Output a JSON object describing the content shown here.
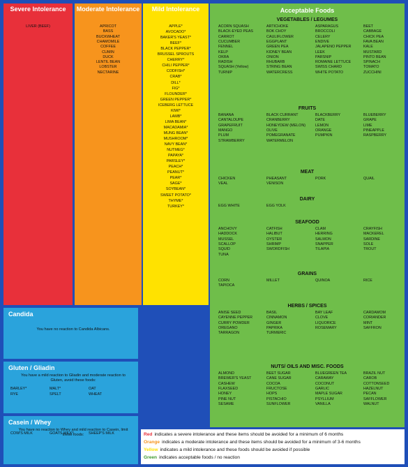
{
  "columns": [
    {
      "title": "Severe Intolerance",
      "items": [
        "LIVER (BEEF)"
      ]
    },
    {
      "title": "Moderate Intolerance",
      "items": [
        "APRICOT",
        "BASS",
        "BUCKWHEAT",
        "CHAMOMILE",
        "COFFEE",
        "CUMIN",
        "DUCK",
        "LENTIL BEAN",
        "LOBSTER",
        "NECTARINE"
      ]
    },
    {
      "title": "Mild Intolerance",
      "items": [
        "APPLE*",
        "AVOCADO*",
        "BAKER'S YEAST*",
        "BEEF*",
        "BLACK PEPPER*",
        "BRUSSEL SPROUTS",
        "CHERRY*",
        "CHILI PEPPER*",
        "CODFISH*",
        "CRAB*",
        "DILL*",
        "FIG*",
        "FLOUNDER*",
        "GREEN PEPPER*",
        "ICEBERG LETTUCE",
        "KIWI*",
        "LAMB*",
        "LIMA BEAN*",
        "MACADAMIA*",
        "MUNG BEAN*",
        "MUSHROOM*",
        "NAVY BEAN*",
        "NUTMEG*",
        "PAPAYA*",
        "PARSLEY*",
        "PEACH*",
        "PEANUT*",
        "PEAR*",
        "SAGE*",
        "SOYBEAN*",
        "SWEET POTATO*",
        "THYME*",
        "TURKEY*"
      ]
    }
  ],
  "acceptable": {
    "title": "Acceptable Foods",
    "sections": [
      {
        "title": "VEGETABLES / LEGUMES",
        "rows": [
          [
            "ACORN SQUASH",
            "ARTICHOKE",
            "ASPARAGUS",
            "BEET"
          ],
          [
            "BLACK-EYED PEAS",
            "BOK CHOY",
            "BROCCOLI",
            "CABBAGE"
          ],
          [
            "CARROT",
            "CAULIFLOWER",
            "CELERY",
            "CHICK PEA"
          ],
          [
            "CUCUMBER",
            "EGGPLANT",
            "ENDIVE",
            "FAVA BEAN"
          ],
          [
            "FENNEL",
            "GREEN PEA",
            "JALAPENO PEPPER",
            "KALE"
          ],
          [
            "KELP",
            "KIDNEY BEAN",
            "LEEK",
            "MUSTARD"
          ],
          [
            "OKRA",
            "ONION",
            "PARSNIP",
            "PINTO BEAN"
          ],
          [
            "RADISH",
            "RHUBARB",
            "ROMAINE LETTUCE",
            "SPINACH"
          ],
          [
            "SQUASH (Yellow)",
            "STRING BEAN",
            "SWISS CHARD",
            "TOMATO"
          ],
          [
            "TURNIP",
            "WATERCRESS",
            "WHITE POTATO",
            "ZUCCHINI"
          ]
        ]
      },
      {
        "title": "FRUITS",
        "rows": [
          [
            "BANANA",
            "BLACK CURRANT",
            "BLACKBERRY",
            "BLUEBERRY"
          ],
          [
            "CANTALOUPE",
            "CRANBERRY",
            "DATE",
            "GRAPE"
          ],
          [
            "GRAPEFRUIT",
            "HONEYDEW (MELON)",
            "LEMON",
            "LIME"
          ],
          [
            "MANGO",
            "OLIVE",
            "ORANGE",
            "PINEAPPLE"
          ],
          [
            "PLUM",
            "POMEGRANATE",
            "PUMPKIN",
            "RASPBERRY"
          ],
          [
            "STRAWBERRY",
            "WATERMELON"
          ]
        ]
      },
      {
        "title": "MEAT",
        "rows": [
          [
            "CHICKEN",
            "PHEASANT",
            "PORK",
            "QUAIL"
          ],
          [
            "VEAL",
            "VENISON"
          ]
        ]
      },
      {
        "title": "DAIRY",
        "rows": [
          [
            "EGG WHITE",
            "EGG YOLK"
          ]
        ]
      },
      {
        "title": "SEAFOOD",
        "rows": [
          [
            "ANCHOVY",
            "CATFISH",
            "CLAM",
            "CRAYFISH"
          ],
          [
            "HADDOCK",
            "HALIBUT",
            "HERRING",
            "MACKEREL"
          ],
          [
            "MUSSEL",
            "OYSTER",
            "SALMON",
            "SARDINE"
          ],
          [
            "SCALLOP",
            "SHRIMP",
            "SNAPPER",
            "SOLE"
          ],
          [
            "SQUID",
            "SWORDFISH",
            "TILAPIA",
            "TROUT"
          ],
          [
            "TUNA"
          ]
        ]
      },
      {
        "title": "GRAINS",
        "rows": [
          [
            "CORN",
            "MILLET",
            "QUINOA",
            "RICE"
          ],
          [
            "TAPIOCA"
          ]
        ]
      },
      {
        "title": "HERBS / SPICES",
        "rows": [
          [
            "ANISE SEED",
            "BASIL",
            "BAY LEAF",
            "CARDAMOM"
          ],
          [
            "CAYENNE PEPPER",
            "CINNAMON",
            "CLOVE",
            "CORIANDER"
          ],
          [
            "CURRY POWDER",
            "GINGER",
            "LIQUORICE",
            "MINT"
          ],
          [
            "OREGANO",
            "PAPRIKA",
            "ROSEMARY",
            "SAFFRON"
          ],
          [
            "TARRAGON",
            "TURMERIC"
          ]
        ]
      },
      {
        "title": "NUTS/ OILS AND MISC. FOODS",
        "rows": [
          [
            "ALMOND",
            "BEET SUGAR",
            "BLUEGREEN TEA",
            "BRAZIL NUT"
          ],
          [
            "BREWER'S YEAST",
            "CANE SUGAR",
            "CARAWAY",
            "CAROB"
          ],
          [
            "CASHEW",
            "COCOA",
            "COCONUT",
            "COTTONSEED"
          ],
          [
            "FLAXSEED",
            "FRUCTOSE",
            "GARLIC",
            "HAZELNUT"
          ],
          [
            "HONEY",
            "HOPS",
            "MAPLE SUGAR",
            "PECAN"
          ],
          [
            "PINE NUT",
            "PISTACHIO",
            "PSYLLIUM",
            "SAFFLOWER"
          ],
          [
            "SESAME",
            "SUNFLOWER",
            "VANILLA",
            "WALNUT"
          ]
        ]
      }
    ]
  },
  "boxes": [
    {
      "title": "Candida",
      "text": "You have no reaction to Candida Albicans."
    },
    {
      "title": "Gluten / Gliadin",
      "text": "You have a mild reaction to Gliadin and moderate reaction to Gluten, avoid these foods:",
      "rows": [
        [
          "BARLEY*",
          "MALT*",
          "OAT"
        ],
        [
          "RYE",
          "SPELT",
          "WHEAT"
        ]
      ]
    },
    {
      "title": "Casein / Whey",
      "text": "You have no reaction to Whey and mild reaction to Casein, limit these foods:",
      "rows": [
        [
          "COW'S MILK",
          "GOATS MILK*",
          "SHEEP'S MILK"
        ]
      ]
    }
  ],
  "legend": [
    {
      "word": "Red",
      "text": "indicates a severe intolerance and these items should be avoided for a minimum of 6 months"
    },
    {
      "word": "Orange",
      "text": "indicates a moderate intolerance and these items should be avoided for a minimum of 3-6 months"
    },
    {
      "word": "Yellow",
      "text": "indicates a mild intolerance and these foods should be avoided if possible"
    },
    {
      "word": "Green",
      "text": "indicates acceptable foods / no reaction"
    }
  ]
}
